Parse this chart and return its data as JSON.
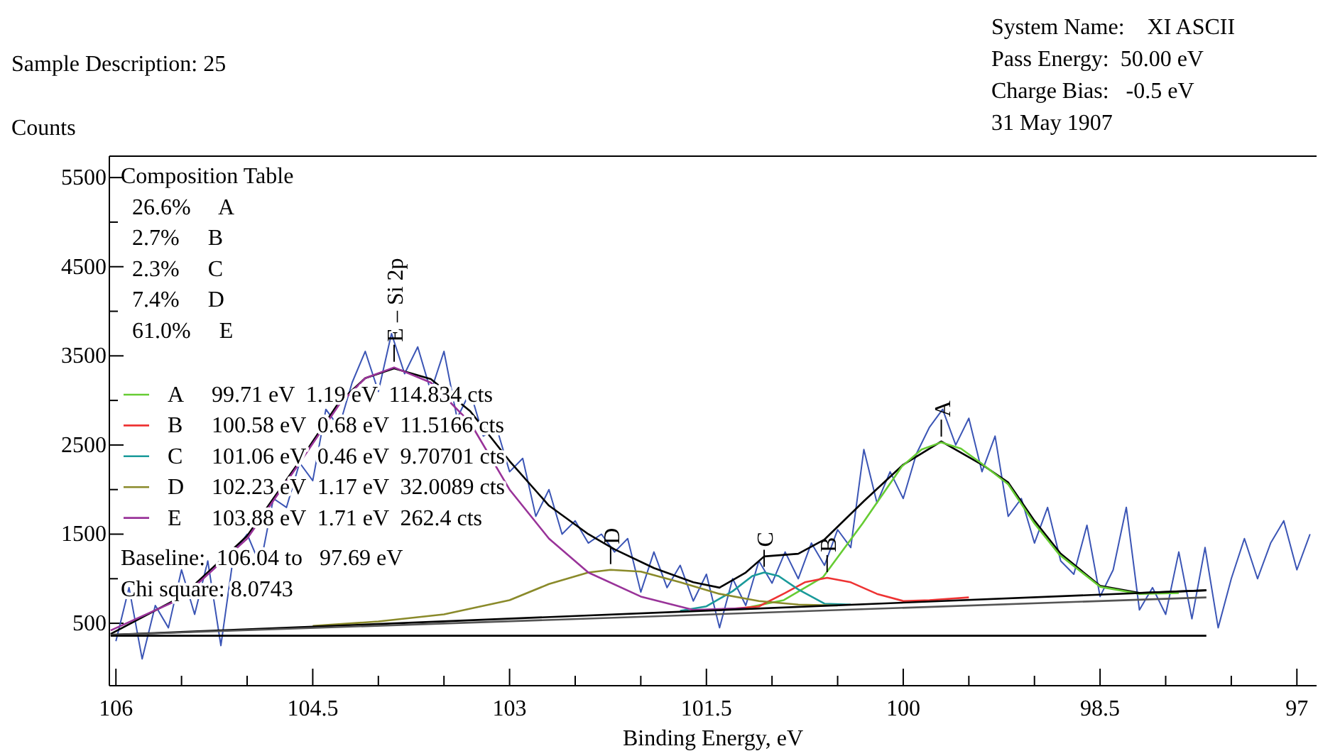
{
  "chart_data": {
    "type": "line",
    "title": "Sample Description: 25",
    "xlabel": "Binding Energy, eV",
    "ylabel": "Counts",
    "xlim": [
      106.05,
      96.85
    ],
    "ylim": [
      -200,
      5740
    ],
    "xticks": [
      106,
      {
        "value": 105.5,
        "label": null
      },
      {
        "value": 105,
        "label": null
      },
      104.5,
      {
        "value": 104,
        "label": null
      },
      {
        "value": 103.5,
        "label": null
      },
      103,
      {
        "value": 102.5,
        "label": null
      },
      {
        "value": 102,
        "label": null
      },
      101.5,
      {
        "value": 101,
        "label": null
      },
      {
        "value": 100.5,
        "label": null
      },
      100,
      {
        "value": 99.5,
        "label": null
      },
      {
        "value": 99,
        "label": null
      },
      98.5,
      {
        "value": 98,
        "label": null
      },
      {
        "value": 97.5,
        "label": null
      },
      97
    ],
    "yticks": [
      500,
      {
        "value": 1000,
        "label": null
      },
      1500,
      {
        "value": 2000,
        "label": null
      },
      2500,
      {
        "value": 3000,
        "label": null
      },
      3500,
      {
        "value": 4000,
        "label": null
      },
      4500,
      {
        "value": 5000,
        "label": null
      },
      5500
    ],
    "annotations": [
      "System Name:    XI ASCII",
      "Pass Energy:  50.00 eV",
      "Charge Bias:   -0.5 eV",
      "31 May 1907",
      "Composition Table",
      "26.6%     A",
      "2.7%     B",
      "2.3%     C",
      "7.4%     D",
      "61.0%     E",
      "99.71 eV  1.19 eV  114.834 cts",
      "100.58 eV  0.68 eV  11.5166 cts",
      "101.06 eV  0.46 eV  9.70701 cts",
      "102.23 eV  1.17 eV  32.0089 cts",
      "103.88 eV  1.71 eV  262.4 cts",
      "Baseline:  106.04 to   97.69 eV",
      "Chi square: 8.0743",
      {
        "text": "A",
        "x": 99.71,
        "y": 2530
      },
      {
        "text": "B",
        "x": 100.58,
        "y": 1010
      },
      {
        "text": "C",
        "x": 101.06,
        "y": 1070
      },
      {
        "text": "D",
        "x": 102.23,
        "y": 1100
      },
      {
        "text": "E – Si 2p",
        "x": 103.88,
        "y": 3370
      }
    ],
    "legend": "left",
    "series": [
      {
        "color": "#3b55b5",
        "x": [
          106,
          105.9,
          105.8,
          105.7,
          105.6,
          105.5,
          105.4,
          105.3,
          105.2,
          105.1,
          105,
          104.9,
          104.8,
          104.7,
          104.6,
          104.5,
          104.4,
          104.3,
          104.2,
          104.1,
          104,
          103.9,
          103.8,
          103.7,
          103.6,
          103.5,
          103.4,
          103.3,
          103.2,
          103.1,
          103,
          102.9,
          102.8,
          102.7,
          102.6,
          102.5,
          102.4,
          102.3,
          102.2,
          102.1,
          102,
          101.9,
          101.8,
          101.7,
          101.6,
          101.5,
          101.4,
          101.3,
          101.2,
          101.1,
          101,
          100.9,
          100.8,
          100.7,
          100.6,
          100.5,
          100.4,
          100.3,
          100.2,
          100.1,
          100,
          99.9,
          99.8,
          99.7,
          99.6,
          99.5,
          99.4,
          99.3,
          99.2,
          99.1,
          99,
          98.9,
          98.8,
          98.7,
          98.6,
          98.5,
          98.4,
          98.3,
          98.2,
          98.1,
          98,
          97.9,
          97.8,
          97.7,
          97.6,
          97.5,
          97.4,
          97.3,
          97.2,
          97.1,
          97,
          96.9
        ],
        "values": [
          300,
          900,
          100,
          700,
          450,
          1100,
          600,
          1200,
          250,
          1300,
          1500,
          1150,
          1900,
          1800,
          2300,
          2100,
          2900,
          2700,
          3200,
          3550,
          3100,
          3750,
          3300,
          3600,
          3100,
          3550,
          2800,
          3100,
          2600,
          2700,
          2200,
          2350,
          1700,
          2000,
          1500,
          1650,
          1400,
          1500,
          1300,
          1450,
          850,
          1300,
          900,
          1150,
          750,
          1050,
          450,
          1000,
          700,
          1200,
          950,
          1300,
          1000,
          1400,
          1150,
          1550,
          1350,
          2450,
          1850,
          2200,
          1900,
          2400,
          2700,
          2900,
          2500,
          2800,
          2200,
          2600,
          1700,
          1900,
          1400,
          1800,
          1200,
          1050,
          1600,
          800,
          1100,
          1800,
          650,
          900,
          600,
          1300,
          550,
          1350,
          450,
          1000,
          1450,
          1000,
          1400,
          1650,
          1100,
          1500
        ]
      },
      {
        "color": "#000000",
        "x": [
          106.04,
          105.5,
          105,
          104.6,
          104.3,
          104.1,
          103.88,
          103.6,
          103.3,
          103,
          102.7,
          102.4,
          102.2,
          101.9,
          101.6,
          101.4,
          101.2,
          101.06,
          100.8,
          100.6,
          100.3,
          100,
          99.71,
          99.4,
          99.2,
          99,
          98.8,
          98.5,
          98.2,
          97.69
        ],
        "values": [
          380,
          800,
          1480,
          2320,
          2980,
          3250,
          3360,
          3240,
          2880,
          2320,
          1820,
          1500,
          1330,
          1120,
          960,
          900,
          1070,
          1250,
          1280,
          1440,
          1870,
          2280,
          2540,
          2280,
          2080,
          1650,
          1280,
          920,
          840,
          870
        ]
      },
      {
        "name": "A",
        "color": "#66cc33",
        "x": [
          101.21,
          100.91,
          100.61,
          100.31,
          100.01,
          99.86,
          99.71,
          99.56,
          99.41,
          99.2,
          99,
          98.81,
          98.5,
          98.2,
          97.9
        ],
        "values": [
          670,
          760,
          1020,
          1620,
          2260,
          2450,
          2530,
          2460,
          2300,
          2060,
          1620,
          1270,
          910,
          830,
          840
        ]
      },
      {
        "name": "B",
        "color": "#ee3333",
        "x": [
          101.4,
          101.1,
          100.9,
          100.75,
          100.58,
          100.4,
          100.2,
          100,
          99.8,
          99.5
        ],
        "values": [
          650,
          690,
          840,
          960,
          1010,
          960,
          830,
          750,
          760,
          790
        ]
      },
      {
        "name": "C",
        "color": "#1a9a9a",
        "x": [
          101.7,
          101.5,
          101.3,
          101.15,
          101.06,
          100.95,
          100.8,
          100.6,
          100.4
        ],
        "values": [
          640,
          690,
          860,
          1030,
          1070,
          1030,
          880,
          720,
          710
        ]
      },
      {
        "name": "D",
        "color": "#8a8a2a",
        "x": [
          104.5,
          104,
          103.5,
          103,
          102.7,
          102.4,
          102.23,
          102,
          101.7,
          101.4,
          101.1,
          100.8,
          100.5
        ],
        "values": [
          470,
          520,
          600,
          760,
          940,
          1070,
          1100,
          1080,
          960,
          830,
          750,
          710,
          700
        ]
      },
      {
        "name": "E",
        "color": "#993399",
        "x": [
          106.04,
          105.5,
          105,
          104.6,
          104.3,
          104.1,
          103.88,
          103.6,
          103.3,
          103,
          102.7,
          102.4,
          102,
          101.6,
          101.2
        ],
        "values": [
          420,
          780,
          1450,
          2300,
          2950,
          3250,
          3370,
          3200,
          2750,
          2000,
          1450,
          1070,
          800,
          650,
          670
        ]
      },
      {
        "color": "#000000",
        "x": [
          106.04,
          97.69
        ],
        "values": [
          370,
          870
        ]
      },
      {
        "color": "#555555",
        "x": [
          106.04,
          97.69
        ],
        "values": [
          370,
          790
        ]
      },
      {
        "color": "#000000",
        "x": [
          106.04,
          97.69
        ],
        "values": [
          360,
          360
        ]
      }
    ]
  }
}
